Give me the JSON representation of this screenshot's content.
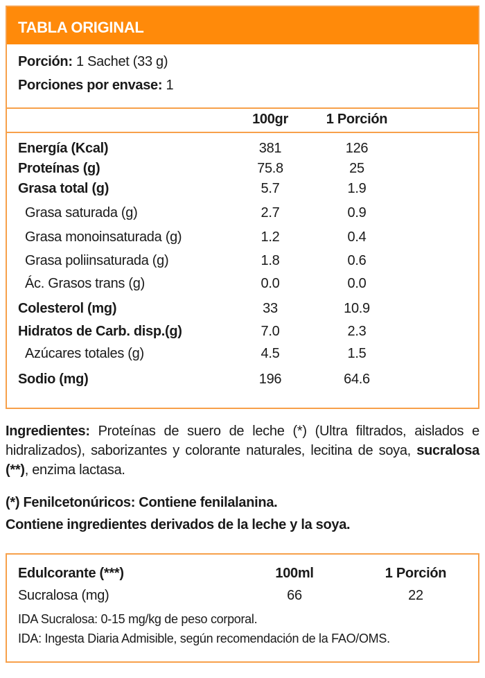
{
  "table": {
    "title": "TABLA ORIGINAL",
    "portion_label": "Porción:",
    "portion_value": "1 Sachet (33 g)",
    "servings_label": "Porciones por envase:",
    "servings_value": "1",
    "col1": "100gr",
    "col2": "1 Porción",
    "rows": [
      {
        "label": "Energía (Kcal)",
        "v100": "381",
        "vpor": "126",
        "bold": true
      },
      {
        "label": "Proteínas (g)",
        "v100": "75.8",
        "vpor": "25",
        "bold": true
      },
      {
        "label": "Grasa total (g)",
        "v100": "5.7",
        "vpor": "1.9",
        "bold": true
      },
      {
        "label": "Grasa saturada (g)",
        "v100": "2.7",
        "vpor": "0.9",
        "bold": false
      },
      {
        "label": "Grasa monoinsaturada (g)",
        "v100": "1.2",
        "vpor": "0.4",
        "bold": false
      },
      {
        "label": "Grasa poliinsaturada (g)",
        "v100": "1.8",
        "vpor": "0.6",
        "bold": false
      },
      {
        "label": "Ác. Grasos trans (g)",
        "v100": "0.0",
        "vpor": "0.0",
        "bold": false
      },
      {
        "label": "Colesterol (mg)",
        "v100": "33",
        "vpor": "10.9",
        "bold": true
      },
      {
        "label": "Hidratos de Carb. disp.(g)",
        "v100": "7.0",
        "vpor": "2.3",
        "bold": true
      },
      {
        "label": "Azúcares totales (g)",
        "v100": "4.5",
        "vpor": "1.5",
        "bold": false
      },
      {
        "label": "Sodio (mg)",
        "v100": "196",
        "vpor": "64.6",
        "bold": true
      }
    ]
  },
  "ingredients": {
    "label": "Ingredientes:",
    "text1": " Proteínas de suero de leche (*) (Ultra filtrados, aislados e hidralizados), saborizantes y colorante naturales, lecitina de soya, ",
    "bold2": "sucralosa (**)",
    "text2": ", enzima lactasa."
  },
  "warnings": [
    "(*) Fenilcetonúricos: Contiene fenilalanina.",
    "Contiene ingredientes derivados de la leche y la soya."
  ],
  "sweetener": {
    "label": "Edulcorante (***)",
    "col1": "100ml",
    "col2": "1 Porción",
    "row": {
      "label": "Sucralosa (mg)",
      "v100": "66",
      "vpor": "22"
    },
    "notes": [
      "IDA Sucralosa: 0-15 mg/kg de peso corporal.",
      "IDA: Ingesta Diaria Admisible, según recomendación de la FAO/OMS."
    ]
  },
  "colors": {
    "accent": "#ff8a0a",
    "border": "#f7a04a"
  }
}
